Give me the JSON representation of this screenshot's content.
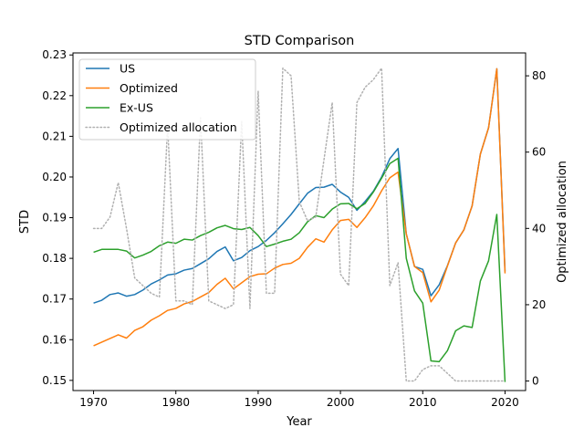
{
  "chart_data": {
    "type": "line",
    "title": "STD Comparison",
    "xlabel": "Year",
    "ylabel": "STD",
    "y2label": "Optimized allocation",
    "xlim": [
      1967.5,
      2022.5
    ],
    "ylim": [
      0.1475,
      0.2305
    ],
    "y2lim": [
      -2.5,
      86
    ],
    "xticks": [
      1970,
      1980,
      1990,
      2000,
      2010,
      2020
    ],
    "yticks": [
      0.15,
      0.16,
      0.17,
      0.18,
      0.19,
      0.2,
      0.21,
      0.22,
      0.23
    ],
    "y2ticks": [
      0,
      20,
      40,
      60,
      80
    ],
    "grid": false,
    "legend_position": "upper-left",
    "x": [
      1970,
      1971,
      1972,
      1973,
      1974,
      1975,
      1976,
      1977,
      1978,
      1979,
      1980,
      1981,
      1982,
      1983,
      1984,
      1985,
      1986,
      1987,
      1988,
      1989,
      1990,
      1991,
      1992,
      1993,
      1994,
      1995,
      1996,
      1997,
      1998,
      1999,
      2000,
      2001,
      2002,
      2003,
      2004,
      2005,
      2006,
      2007,
      2008,
      2009,
      2010,
      2011,
      2012,
      2013,
      2014,
      2015,
      2016,
      2017,
      2018,
      2019,
      2020
    ],
    "series": [
      {
        "name": "US",
        "axis": "left",
        "color": "#1f77b4",
        "style": "solid",
        "values": [
          0.169,
          0.1697,
          0.1711,
          0.1715,
          0.1707,
          0.1711,
          0.1722,
          0.1737,
          0.1747,
          0.1759,
          0.1762,
          0.1771,
          0.1775,
          0.1787,
          0.1799,
          0.1817,
          0.1828,
          0.1794,
          0.1802,
          0.1819,
          0.1829,
          0.1844,
          0.1863,
          0.1885,
          0.1908,
          0.1934,
          0.196,
          0.1974,
          0.1975,
          0.1982,
          0.1963,
          0.195,
          0.1918,
          0.194,
          0.1965,
          0.2,
          0.2045,
          0.207,
          0.186,
          0.178,
          0.1773,
          0.1708,
          0.1735,
          0.1782,
          0.1838,
          0.187,
          0.1929,
          0.2056,
          0.2121,
          0.2266,
          0.1768
        ]
      },
      {
        "name": "Optimized",
        "axis": "left",
        "color": "#ff7f0e",
        "style": "solid",
        "values": [
          0.1585,
          0.1594,
          0.1603,
          0.1612,
          0.1604,
          0.1623,
          0.1632,
          0.1648,
          0.1659,
          0.1672,
          0.1677,
          0.1688,
          0.1694,
          0.1705,
          0.1716,
          0.1736,
          0.1751,
          0.1725,
          0.174,
          0.1755,
          0.1761,
          0.1762,
          0.1776,
          0.1785,
          0.1788,
          0.18,
          0.1827,
          0.1848,
          0.184,
          0.187,
          0.1893,
          0.1896,
          0.1876,
          0.19,
          0.1929,
          0.1966,
          0.1998,
          0.2012,
          0.186,
          0.178,
          0.1765,
          0.1693,
          0.1722,
          0.1781,
          0.1838,
          0.187,
          0.1929,
          0.2056,
          0.2121,
          0.2266,
          0.1763
        ]
      },
      {
        "name": "Ex-US",
        "axis": "left",
        "color": "#2ca02c",
        "style": "solid",
        "values": [
          0.1815,
          0.1822,
          0.1822,
          0.1822,
          0.1818,
          0.1801,
          0.1808,
          0.1817,
          0.1831,
          0.184,
          0.1837,
          0.1847,
          0.1845,
          0.1856,
          0.1864,
          0.1875,
          0.1881,
          0.1873,
          0.1871,
          0.1876,
          0.1856,
          0.1829,
          0.1835,
          0.1842,
          0.1847,
          0.1863,
          0.189,
          0.1905,
          0.19,
          0.1921,
          0.1934,
          0.1935,
          0.1922,
          0.1935,
          0.1963,
          0.1997,
          0.2033,
          0.2046,
          0.18,
          0.172,
          0.169,
          0.1548,
          0.1546,
          0.1573,
          0.1622,
          0.1634,
          0.163,
          0.1744,
          0.1794,
          0.1908,
          0.1496
        ]
      },
      {
        "name": "Optimized allocation",
        "axis": "right",
        "color": "#b0b0b0",
        "style": "dotted",
        "values": [
          40,
          40,
          43,
          52,
          40,
          27,
          25,
          23,
          22,
          67,
          21,
          21,
          20,
          69,
          21,
          20,
          19,
          20,
          68,
          19,
          76,
          23,
          23,
          82,
          80,
          47,
          42,
          43,
          58,
          73,
          28,
          25,
          73,
          77,
          79,
          82,
          25,
          31,
          0,
          0,
          3,
          4,
          4,
          2,
          0,
          0,
          0,
          0,
          0,
          0,
          0
        ]
      }
    ]
  }
}
